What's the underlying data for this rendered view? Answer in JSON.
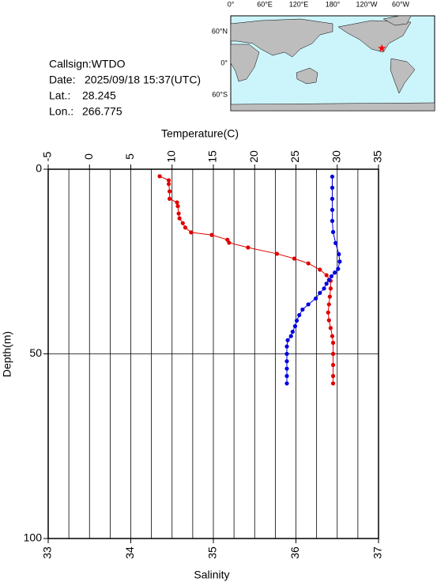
{
  "info": {
    "callsign": "Callsign:WTDO",
    "date_label": "Date:",
    "date": "2025/09/18 15:37(UTC)",
    "lat_label": "Lat.:",
    "lat": 28.245,
    "lon_label": "Lon.:",
    "lon": 266.775
  },
  "map": {
    "lon_labels": [
      "0°",
      "60°E",
      "120°E",
      "180°",
      "120°W",
      "60°W"
    ],
    "lat_labels": [
      "60°N",
      "0°",
      "60°S"
    ]
  },
  "chart_data": {
    "type": "profile",
    "temperature_axis": {
      "label": "Temperature(C)",
      "lim": [
        -5,
        35
      ],
      "ticks": [
        -5,
        0,
        5,
        10,
        15,
        20,
        25,
        30,
        35
      ],
      "grid": [
        -2.5,
        0,
        2.5,
        5,
        7.5,
        10,
        12.5,
        15,
        17.5,
        20,
        22.5,
        25,
        27.5,
        30,
        32.5
      ]
    },
    "salinity_axis": {
      "label": "Salinity",
      "lim": [
        33,
        37
      ],
      "ticks": [
        33,
        34,
        35,
        36,
        37
      ]
    },
    "depth_axis": {
      "label": "Depth(m)",
      "lim": [
        0,
        100
      ],
      "ticks": [
        0,
        50,
        100
      ],
      "grid": [
        50
      ]
    },
    "series": [
      {
        "axis": "temperature",
        "color": "#e00000",
        "depths": [
          1.9,
          3,
          4,
          6,
          8,
          9,
          10,
          12,
          13.3,
          14.6,
          15.8,
          17.1,
          17.8,
          19.1,
          19.9,
          21.2,
          22.9,
          24.2,
          25.5,
          27.2,
          28.7,
          30.2,
          32.3,
          34.5,
          36.6,
          38.8,
          40.9,
          43,
          45.2,
          47,
          50,
          53,
          56,
          58
        ],
        "values": [
          8.5,
          9.6,
          9.6,
          9.7,
          9.7,
          10.6,
          10.7,
          10.8,
          10.9,
          11.3,
          11.6,
          12.3,
          14.8,
          16.7,
          16.9,
          19.2,
          22.7,
          24.8,
          26.5,
          27.9,
          28.7,
          29.2,
          29.2,
          29.1,
          29.0,
          28.9,
          29.0,
          29.2,
          29.4,
          29.5,
          29.5,
          29.5,
          29.5,
          29.5
        ]
      },
      {
        "axis": "salinity",
        "color": "#0000e0",
        "depths": [
          2,
          5,
          8,
          11,
          14,
          17,
          20,
          23,
          25,
          27,
          28,
          29,
          30,
          31,
          32.3,
          33.5,
          35,
          36.6,
          38,
          39.5,
          41,
          42.5,
          44,
          45.2,
          46.3,
          48,
          50,
          52,
          54,
          56,
          58
        ],
        "values": [
          36.44,
          36.44,
          36.44,
          36.44,
          36.44,
          36.45,
          36.48,
          36.52,
          36.53,
          36.51,
          36.47,
          36.43,
          36.4,
          36.37,
          36.34,
          36.29,
          36.24,
          36.15,
          36.08,
          36.04,
          36.01,
          35.99,
          35.96,
          35.94,
          35.9,
          35.89,
          35.89,
          35.89,
          35.89,
          35.89,
          35.89
        ]
      }
    ]
  }
}
